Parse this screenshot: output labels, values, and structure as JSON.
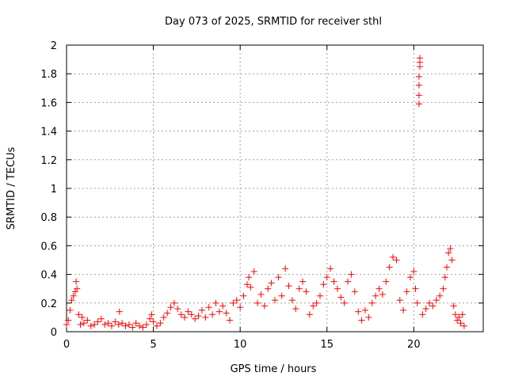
{
  "chart_data": {
    "type": "scatter",
    "title": "Day 073 of 2025, SRMTID for receiver sthl",
    "xlabel": "GPS time / hours",
    "ylabel": "SRMTID / TECUs",
    "xlim": [
      0,
      24
    ],
    "ylim": [
      0,
      2
    ],
    "x_ticks": [
      0,
      5,
      10,
      15,
      20
    ],
    "x_tick_labels": [
      "0",
      "5",
      "10",
      "15",
      "20"
    ],
    "y_ticks": [
      0,
      0.2,
      0.4,
      0.6,
      0.8,
      1.0,
      1.2,
      1.4,
      1.6,
      1.8,
      2.0
    ],
    "y_tick_labels": [
      "0",
      "0.2",
      "0.4",
      "0.6",
      "0.8",
      "1",
      "1.2",
      "1.4",
      "1.6",
      "1.8",
      "2"
    ],
    "grid": true,
    "marker": "+",
    "color": "#ff0000",
    "series": [
      {
        "name": "SRMTID",
        "points": [
          [
            0.0,
            0.05
          ],
          [
            0.1,
            0.08
          ],
          [
            0.2,
            0.15
          ],
          [
            0.3,
            0.22
          ],
          [
            0.4,
            0.25
          ],
          [
            0.5,
            0.28
          ],
          [
            0.55,
            0.35
          ],
          [
            0.6,
            0.3
          ],
          [
            0.7,
            0.12
          ],
          [
            0.8,
            0.05
          ],
          [
            0.9,
            0.1
          ],
          [
            1.0,
            0.06
          ],
          [
            1.2,
            0.08
          ],
          [
            1.4,
            0.04
          ],
          [
            1.6,
            0.05
          ],
          [
            1.8,
            0.07
          ],
          [
            2.0,
            0.09
          ],
          [
            2.2,
            0.05
          ],
          [
            2.4,
            0.06
          ],
          [
            2.6,
            0.04
          ],
          [
            2.8,
            0.07
          ],
          [
            3.0,
            0.05
          ],
          [
            3.05,
            0.14
          ],
          [
            3.2,
            0.06
          ],
          [
            3.4,
            0.04
          ],
          [
            3.6,
            0.05
          ],
          [
            3.8,
            0.03
          ],
          [
            4.0,
            0.06
          ],
          [
            4.2,
            0.04
          ],
          [
            4.4,
            0.03
          ],
          [
            4.6,
            0.05
          ],
          [
            4.8,
            0.09
          ],
          [
            4.9,
            0.12
          ],
          [
            5.0,
            0.07
          ],
          [
            5.2,
            0.04
          ],
          [
            5.4,
            0.06
          ],
          [
            5.6,
            0.1
          ],
          [
            5.8,
            0.13
          ],
          [
            6.0,
            0.17
          ],
          [
            6.2,
            0.2
          ],
          [
            6.4,
            0.16
          ],
          [
            6.6,
            0.12
          ],
          [
            6.8,
            0.1
          ],
          [
            7.0,
            0.14
          ],
          [
            7.2,
            0.12
          ],
          [
            7.4,
            0.09
          ],
          [
            7.6,
            0.11
          ],
          [
            7.8,
            0.15
          ],
          [
            8.0,
            0.1
          ],
          [
            8.2,
            0.17
          ],
          [
            8.4,
            0.12
          ],
          [
            8.6,
            0.2
          ],
          [
            8.8,
            0.14
          ],
          [
            9.0,
            0.18
          ],
          [
            9.2,
            0.13
          ],
          [
            9.4,
            0.08
          ],
          [
            9.6,
            0.2
          ],
          [
            9.8,
            0.22
          ],
          [
            10.0,
            0.17
          ],
          [
            10.2,
            0.25
          ],
          [
            10.4,
            0.33
          ],
          [
            10.5,
            0.38
          ],
          [
            10.6,
            0.31
          ],
          [
            10.8,
            0.42
          ],
          [
            11.0,
            0.2
          ],
          [
            11.2,
            0.26
          ],
          [
            11.4,
            0.18
          ],
          [
            11.6,
            0.3
          ],
          [
            11.8,
            0.34
          ],
          [
            12.0,
            0.22
          ],
          [
            12.2,
            0.38
          ],
          [
            12.4,
            0.25
          ],
          [
            12.6,
            0.44
          ],
          [
            12.8,
            0.32
          ],
          [
            13.0,
            0.22
          ],
          [
            13.2,
            0.16
          ],
          [
            13.4,
            0.3
          ],
          [
            13.6,
            0.35
          ],
          [
            13.8,
            0.28
          ],
          [
            14.0,
            0.12
          ],
          [
            14.2,
            0.18
          ],
          [
            14.4,
            0.2
          ],
          [
            14.6,
            0.25
          ],
          [
            14.8,
            0.33
          ],
          [
            15.0,
            0.38
          ],
          [
            15.2,
            0.44
          ],
          [
            15.4,
            0.35
          ],
          [
            15.6,
            0.3
          ],
          [
            15.8,
            0.24
          ],
          [
            16.0,
            0.2
          ],
          [
            16.2,
            0.35
          ],
          [
            16.4,
            0.4
          ],
          [
            16.6,
            0.28
          ],
          [
            16.8,
            0.14
          ],
          [
            17.0,
            0.08
          ],
          [
            17.2,
            0.15
          ],
          [
            17.4,
            0.1
          ],
          [
            17.6,
            0.2
          ],
          [
            17.8,
            0.25
          ],
          [
            18.0,
            0.3
          ],
          [
            18.2,
            0.26
          ],
          [
            18.4,
            0.35
          ],
          [
            18.6,
            0.45
          ],
          [
            18.8,
            0.52
          ],
          [
            19.0,
            0.5
          ],
          [
            19.2,
            0.22
          ],
          [
            19.4,
            0.15
          ],
          [
            19.6,
            0.28
          ],
          [
            19.8,
            0.38
          ],
          [
            20.0,
            0.42
          ],
          [
            20.1,
            0.3
          ],
          [
            20.2,
            0.2
          ],
          [
            20.3,
            1.59
          ],
          [
            20.3,
            1.65
          ],
          [
            20.3,
            1.72
          ],
          [
            20.3,
            1.78
          ],
          [
            20.35,
            1.85
          ],
          [
            20.35,
            1.88
          ],
          [
            20.35,
            1.91
          ],
          [
            20.5,
            0.12
          ],
          [
            20.7,
            0.16
          ],
          [
            20.9,
            0.2
          ],
          [
            21.1,
            0.18
          ],
          [
            21.3,
            0.22
          ],
          [
            21.5,
            0.25
          ],
          [
            21.7,
            0.3
          ],
          [
            21.8,
            0.38
          ],
          [
            21.9,
            0.45
          ],
          [
            22.0,
            0.55
          ],
          [
            22.1,
            0.58
          ],
          [
            22.2,
            0.5
          ],
          [
            22.3,
            0.18
          ],
          [
            22.4,
            0.12
          ],
          [
            22.5,
            0.08
          ],
          [
            22.6,
            0.1
          ],
          [
            22.7,
            0.06
          ],
          [
            22.8,
            0.12
          ],
          [
            22.9,
            0.04
          ]
        ]
      }
    ]
  }
}
